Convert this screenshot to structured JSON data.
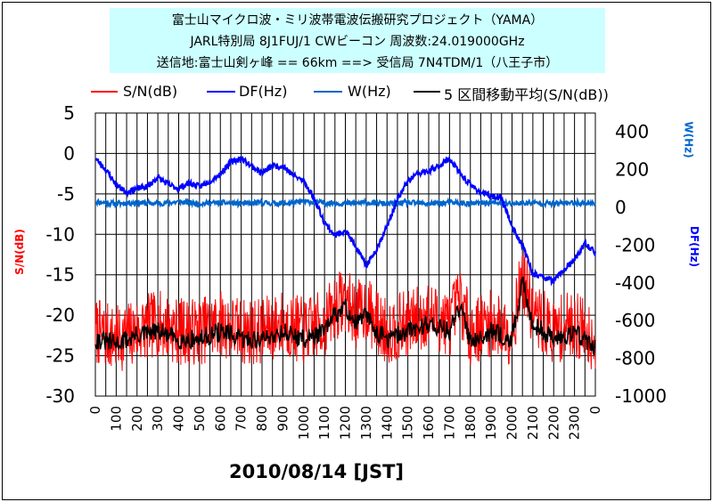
{
  "header": {
    "line1": "富士山マイクロ波・ミリ波帯電波伝搬研究プロジェクト（YAMA）",
    "line2": "JARL特別局 8J1FUJ/1  CWビーコン 周波数:24.019000GHz",
    "line3": "送信地:富士山剣ヶ峰  == 66km ==> 受信局 7N4TDM/1（八王子市）"
  },
  "legend": {
    "sn": "S/N(dB)",
    "df": "DF(Hz)",
    "w": "W(Hz)",
    "ma": "5 区間移動平均(S/N(dB))"
  },
  "axes": {
    "left_label": "S/N(dB)",
    "right_label_w": "W(Hz)",
    "right_label_df": "DF(Hz)"
  },
  "date_label": "2010/08/14    [JST]",
  "colors": {
    "sn": "#ff0000",
    "df": "#0000ff",
    "w": "#0066cc",
    "ma": "#000000"
  },
  "chart_data": {
    "type": "line",
    "x_ticks": [
      "0",
      "100",
      "200",
      "300",
      "400",
      "500",
      "600",
      "700",
      "800",
      "900",
      "1000",
      "1100",
      "1200",
      "1300",
      "1400",
      "1500",
      "1600",
      "1700",
      "1800",
      "1900",
      "2000",
      "2100",
      "2200",
      "2300",
      "0"
    ],
    "x_range_hours": [
      0,
      24
    ],
    "y_left": {
      "ticks": [
        "5",
        "0",
        "-5",
        "-10",
        "-15",
        "-20",
        "-25",
        "-30"
      ],
      "range": [
        -30,
        5
      ],
      "label": "S/N(dB)"
    },
    "y_right": {
      "ticks": [
        "400",
        "200",
        "0",
        "-200",
        "-400",
        "-600",
        "-800",
        "-1000"
      ],
      "range": [
        -1000,
        500
      ],
      "labels": [
        "W(Hz)",
        "DF(Hz)"
      ]
    },
    "series": [
      {
        "name": "DF(Hz)",
        "axis": "right",
        "x": [
          0,
          0.5,
          1,
          1.5,
          2,
          2.5,
          3,
          3.5,
          4,
          4.5,
          5,
          5.5,
          6,
          6.5,
          7,
          7.5,
          8,
          8.5,
          9,
          9.5,
          10,
          10.5,
          11,
          11.5,
          12,
          12.5,
          13,
          13.5,
          14,
          14.5,
          15,
          15.5,
          16,
          16.5,
          17,
          17.5,
          18,
          18.5,
          19,
          19.5,
          20,
          20.5,
          21,
          21.5,
          22,
          22.5,
          23,
          23.5,
          24
        ],
        "values": [
          260,
          200,
          120,
          80,
          100,
          110,
          160,
          120,
          100,
          130,
          110,
          140,
          180,
          240,
          260,
          220,
          180,
          220,
          220,
          170,
          140,
          50,
          -80,
          -150,
          -120,
          -210,
          -310,
          -220,
          -100,
          40,
          140,
          180,
          190,
          220,
          260,
          180,
          120,
          80,
          60,
          50,
          -100,
          -200,
          -350,
          -370,
          -390,
          -330,
          -280,
          -190,
          -240
        ]
      },
      {
        "name": "W(Hz)",
        "axis": "right",
        "x": [
          0,
          1,
          2,
          3,
          4,
          5,
          6,
          7,
          8,
          9,
          10,
          11,
          12,
          13,
          14,
          15,
          16,
          17,
          18,
          19,
          20,
          21,
          22,
          23,
          24
        ],
        "values": [
          30,
          20,
          25,
          20,
          30,
          20,
          25,
          20,
          25,
          20,
          30,
          25,
          20,
          25,
          20,
          25,
          20,
          25,
          20,
          25,
          20,
          25,
          20,
          25,
          20
        ]
      },
      {
        "name": "S/N(dB)",
        "axis": "left",
        "x": [
          0,
          1,
          2,
          3,
          4,
          5,
          6,
          7,
          8,
          9,
          10,
          11,
          11.5,
          12,
          12.5,
          13,
          13.5,
          14,
          15,
          16,
          17,
          17.5,
          18,
          19,
          20,
          20.5,
          21,
          22,
          23,
          24
        ],
        "values": [
          -22,
          -23,
          -22,
          -21,
          -22,
          -22,
          -21,
          -22,
          -22,
          -21,
          -22,
          -21,
          -19,
          -18,
          -20,
          -19,
          -21,
          -22,
          -21,
          -20,
          -21,
          -18,
          -22,
          -21,
          -22,
          -15,
          -20,
          -22,
          -21,
          -23
        ]
      },
      {
        "name": "5 区間移動平均(S/N(dB))",
        "axis": "left",
        "x": [
          0,
          1,
          2,
          3,
          4,
          5,
          6,
          7,
          8,
          9,
          10,
          11,
          11.5,
          12,
          12.5,
          13,
          13.5,
          14,
          15,
          16,
          17,
          17.5,
          18,
          19,
          20,
          20.5,
          21,
          22,
          23,
          24
        ],
        "values": [
          -23,
          -23.5,
          -22.5,
          -22,
          -23,
          -23,
          -22,
          -23,
          -23,
          -22,
          -23,
          -22,
          -20,
          -19,
          -21,
          -20,
          -22,
          -23,
          -22,
          -21,
          -22,
          -19,
          -23,
          -22,
          -23,
          -16,
          -21,
          -23,
          -22,
          -24
        ]
      }
    ]
  }
}
